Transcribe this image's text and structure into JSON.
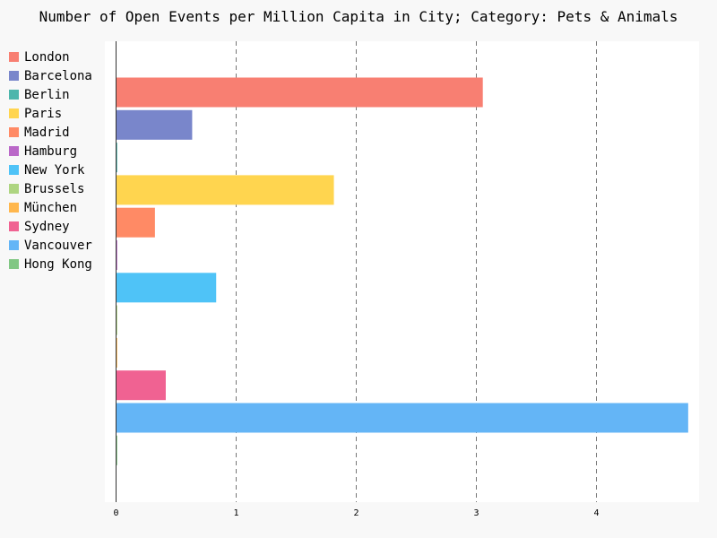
{
  "chart_data": {
    "type": "bar",
    "orientation": "horizontal",
    "title": "Number of Open Events per Million Capita in City; Category: Pets & Animals",
    "xlabel": "",
    "ylabel": "",
    "xlim": [
      0,
      4.78
    ],
    "x_ticks": [
      "0",
      "1",
      "2",
      "3",
      "4"
    ],
    "grid": "vertical-dashed",
    "legend_position": "left",
    "series": [
      {
        "name": "London",
        "value": 3.05,
        "color": "#f87f72"
      },
      {
        "name": "Barcelona",
        "value": 0.63,
        "color": "#7986cb"
      },
      {
        "name": "Berlin",
        "value": 0.0,
        "color": "#4db6ac"
      },
      {
        "name": "Paris",
        "value": 1.81,
        "color": "#ffd54f"
      },
      {
        "name": "Madrid",
        "value": 0.32,
        "color": "#ff8a65"
      },
      {
        "name": "Hamburg",
        "value": 0.0,
        "color": "#ba68c8"
      },
      {
        "name": "New York",
        "value": 0.83,
        "color": "#4fc3f7"
      },
      {
        "name": "Brussels",
        "value": 0.0,
        "color": "#aed581"
      },
      {
        "name": "München",
        "value": 0.0,
        "color": "#ffb74d"
      },
      {
        "name": "Sydney",
        "value": 0.41,
        "color": "#f06292"
      },
      {
        "name": "Vancouver",
        "value": 4.76,
        "color": "#64b5f6"
      },
      {
        "name": "Hong Kong",
        "value": 0.0,
        "color": "#81c784"
      }
    ]
  }
}
